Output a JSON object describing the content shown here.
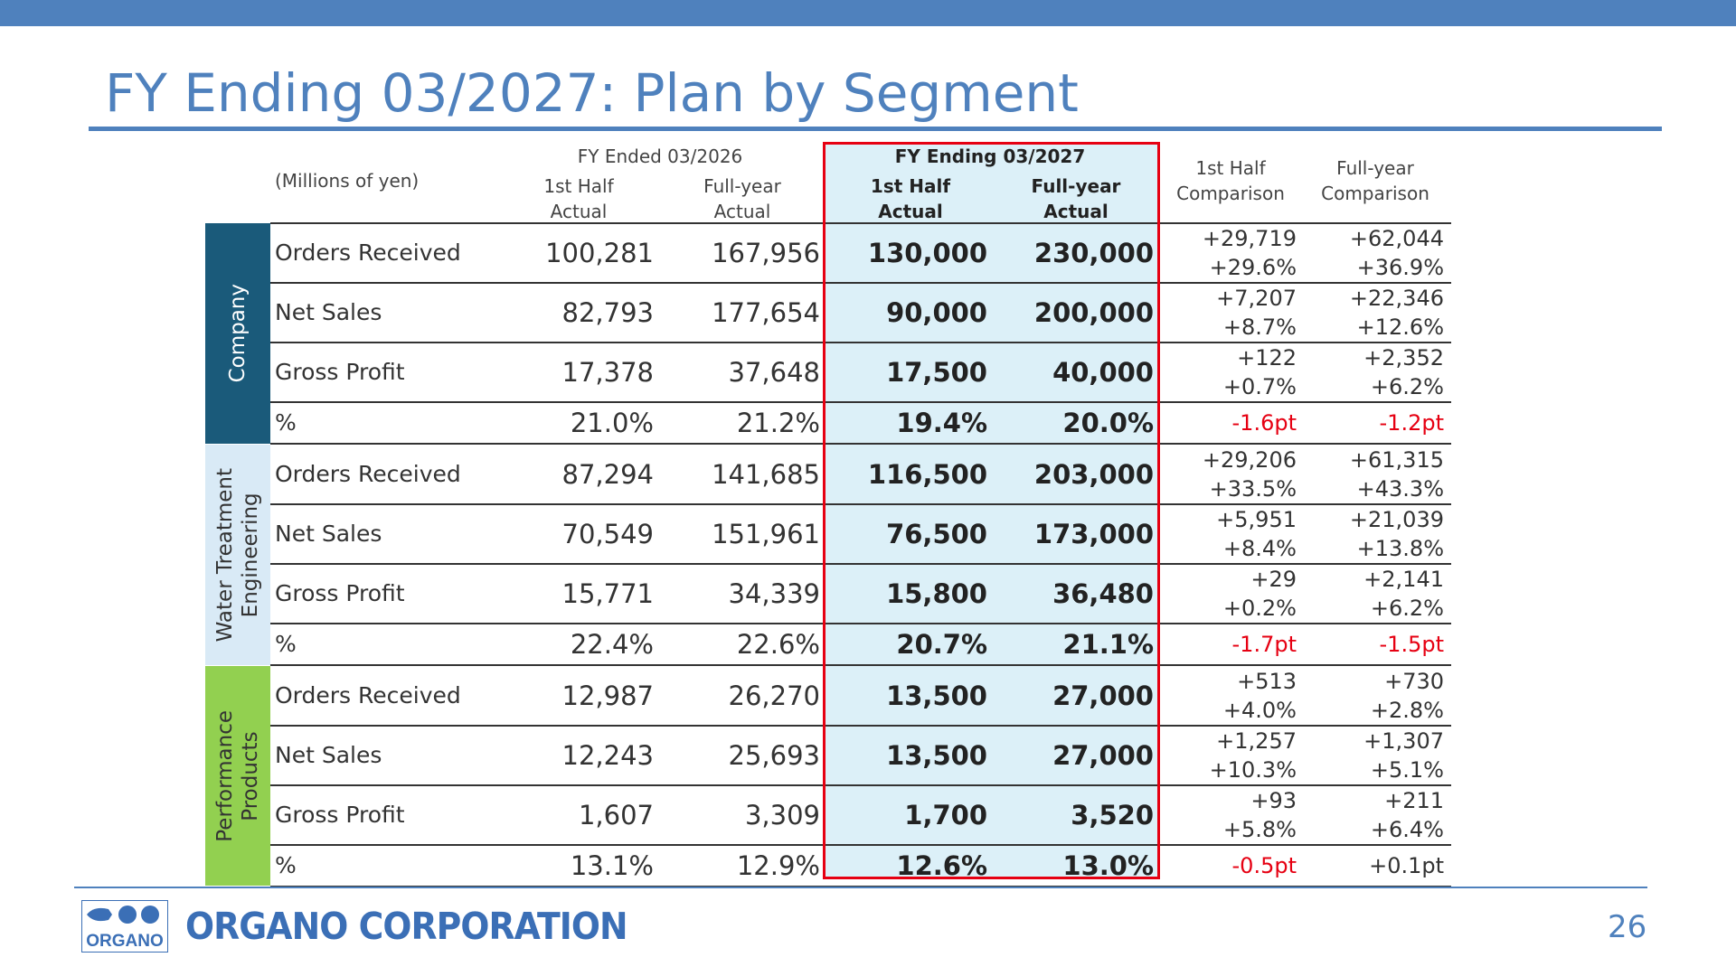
{
  "colors": {
    "accent_blue": "#4f81bd",
    "highlight_fill": "#dcf0f8",
    "highlight_border": "#e60012",
    "negative_text": "#e60012",
    "company_blue": "#3b6fb6",
    "segment_company": "#1a5a7a",
    "segment_water": "#d9eaf6",
    "segment_performance": "#92d050"
  },
  "title": "FY Ending 03/2027: Plan by Segment",
  "table": {
    "unit": "(Millions of yen)",
    "header": {
      "fy2026": "FY Ended 03/2026",
      "fy2026_h1_line1": "1st Half",
      "fy2026_h1_line2": "Actual",
      "fy2026_fy_line1": "Full-year",
      "fy2026_fy_line2": "Actual",
      "fy2027": "FY Ending 03/2027",
      "fy2027_h1_line1": "1st Half",
      "fy2027_h1_line2": "Actual",
      "fy2027_fy_line1": "Full-year",
      "fy2027_fy_line2": "Actual",
      "cmp_h1_line1": "1st Half",
      "cmp_h1_line2": "Comparison",
      "cmp_fy_line1": "Full-year",
      "cmp_fy_line2": "Comparison"
    },
    "segments": [
      {
        "name": "Company",
        "rows": [
          {
            "label": "Orders Received",
            "h1_2026": "100,281",
            "fy_2026": "167,956",
            "h1_2027": "130,000",
            "fy_2027": "230,000",
            "cmp_h1": [
              "+29,719",
              "+29.6%"
            ],
            "cmp_fy": [
              "+62,044",
              "+36.9%"
            ]
          },
          {
            "label": "Net Sales",
            "h1_2026": "82,793",
            "fy_2026": "177,654",
            "h1_2027": "90,000",
            "fy_2027": "200,000",
            "cmp_h1": [
              "+7,207",
              "+8.7%"
            ],
            "cmp_fy": [
              "+22,346",
              "+12.6%"
            ]
          },
          {
            "label": "Gross Profit",
            "h1_2026": "17,378",
            "fy_2026": "37,648",
            "h1_2027": "17,500",
            "fy_2027": "40,000",
            "cmp_h1": [
              "+122",
              "+0.7%"
            ],
            "cmp_fy": [
              "+2,352",
              "+6.2%"
            ]
          },
          {
            "label": "%",
            "h1_2026": "21.0%",
            "fy_2026": "21.2%",
            "h1_2027": "19.4%",
            "fy_2027": "20.0%",
            "cmp_h1": "-1.6pt",
            "cmp_fy": "-1.2pt"
          }
        ]
      },
      {
        "name": "Water Treatment Engineering",
        "name_lines": [
          "Water Treatment",
          "Engineering"
        ],
        "rows": [
          {
            "label": "Orders Received",
            "h1_2026": "87,294",
            "fy_2026": "141,685",
            "h1_2027": "116,500",
            "fy_2027": "203,000",
            "cmp_h1": [
              "+29,206",
              "+33.5%"
            ],
            "cmp_fy": [
              "+61,315",
              "+43.3%"
            ]
          },
          {
            "label": "Net Sales",
            "h1_2026": "70,549",
            "fy_2026": "151,961",
            "h1_2027": "76,500",
            "fy_2027": "173,000",
            "cmp_h1": [
              "+5,951",
              "+8.4%"
            ],
            "cmp_fy": [
              "+21,039",
              "+13.8%"
            ]
          },
          {
            "label": "Gross Profit",
            "h1_2026": "15,771",
            "fy_2026": "34,339",
            "h1_2027": "15,800",
            "fy_2027": "36,480",
            "cmp_h1": [
              "+29",
              "+0.2%"
            ],
            "cmp_fy": [
              "+2,141",
              "+6.2%"
            ]
          },
          {
            "label": "%",
            "h1_2026": "22.4%",
            "fy_2026": "22.6%",
            "h1_2027": "20.7%",
            "fy_2027": "21.1%",
            "cmp_h1": "-1.7pt",
            "cmp_fy": "-1.5pt"
          }
        ]
      },
      {
        "name": "Performance Products",
        "name_lines": [
          "Performance",
          "Products"
        ],
        "rows": [
          {
            "label": "Orders Received",
            "h1_2026": "12,987",
            "fy_2026": "26,270",
            "h1_2027": "13,500",
            "fy_2027": "27,000",
            "cmp_h1": [
              "+513",
              "+4.0%"
            ],
            "cmp_fy": [
              "+730",
              "+2.8%"
            ]
          },
          {
            "label": "Net Sales",
            "h1_2026": "12,243",
            "fy_2026": "25,693",
            "h1_2027": "13,500",
            "fy_2027": "27,000",
            "cmp_h1": [
              "+1,257",
              "+10.3%"
            ],
            "cmp_fy": [
              "+1,307",
              "+5.1%"
            ]
          },
          {
            "label": "Gross Profit",
            "h1_2026": "1,607",
            "fy_2026": "3,309",
            "h1_2027": "1,700",
            "fy_2027": "3,520",
            "cmp_h1": [
              "+93",
              "+5.8%"
            ],
            "cmp_fy": [
              "+211",
              "+6.4%"
            ]
          },
          {
            "label": "%",
            "h1_2026": "13.1%",
            "fy_2026": "12.9%",
            "h1_2027": "12.6%",
            "fy_2027": "13.0%",
            "cmp_h1": "-0.5pt",
            "cmp_fy": "+0.1pt"
          }
        ]
      }
    ]
  },
  "footer": {
    "logo_icon": "organo-logo",
    "logo_text": "ORGANO",
    "company_name": "ORGANO CORPORATION",
    "page_number": "26"
  }
}
